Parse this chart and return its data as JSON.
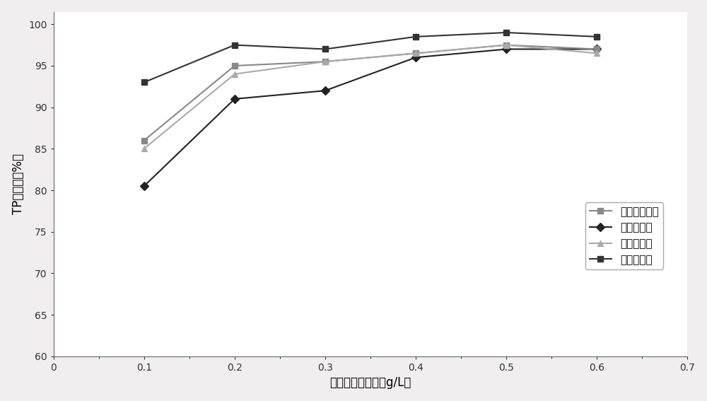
{
  "x": [
    0.1,
    0.2,
    0.3,
    0.4,
    0.5,
    0.6
  ],
  "series": [
    {
      "label": "国外某混凝剂",
      "y": [
        86.0,
        95.0,
        95.5,
        96.5,
        97.5,
        97.0
      ],
      "color": "#888888",
      "marker": "s",
      "zorder": 3
    },
    {
      "label": "聚合氯化铝",
      "y": [
        80.5,
        91.0,
        92.0,
        96.0,
        97.0,
        97.0
      ],
      "color": "#222222",
      "marker": "D",
      "zorder": 2
    },
    {
      "label": "自制混凝剂",
      "y": [
        85.0,
        94.0,
        95.5,
        96.5,
        97.5,
        96.5
      ],
      "color": "#aaaaaa",
      "marker": "^",
      "zorder": 3
    },
    {
      "label": "聚合硫酸铁",
      "y": [
        93.0,
        97.5,
        97.0,
        98.5,
        99.0,
        98.5
      ],
      "color": "#333333",
      "marker": "s",
      "zorder": 4
    }
  ],
  "xlim": [
    0,
    0.7
  ],
  "ylim": [
    60,
    101.5
  ],
  "xticks": [
    0,
    0.1,
    0.2,
    0.3,
    0.4,
    0.5,
    0.6,
    0.7
  ],
  "yticks": [
    60,
    65,
    70,
    75,
    80,
    85,
    90,
    95,
    100
  ],
  "xlabel": "混凝剂的投加量（g/L）",
  "ylabel": "TP去除率（%）",
  "background_color": "#ffffff",
  "linewidth": 1.5,
  "markersize": 6
}
